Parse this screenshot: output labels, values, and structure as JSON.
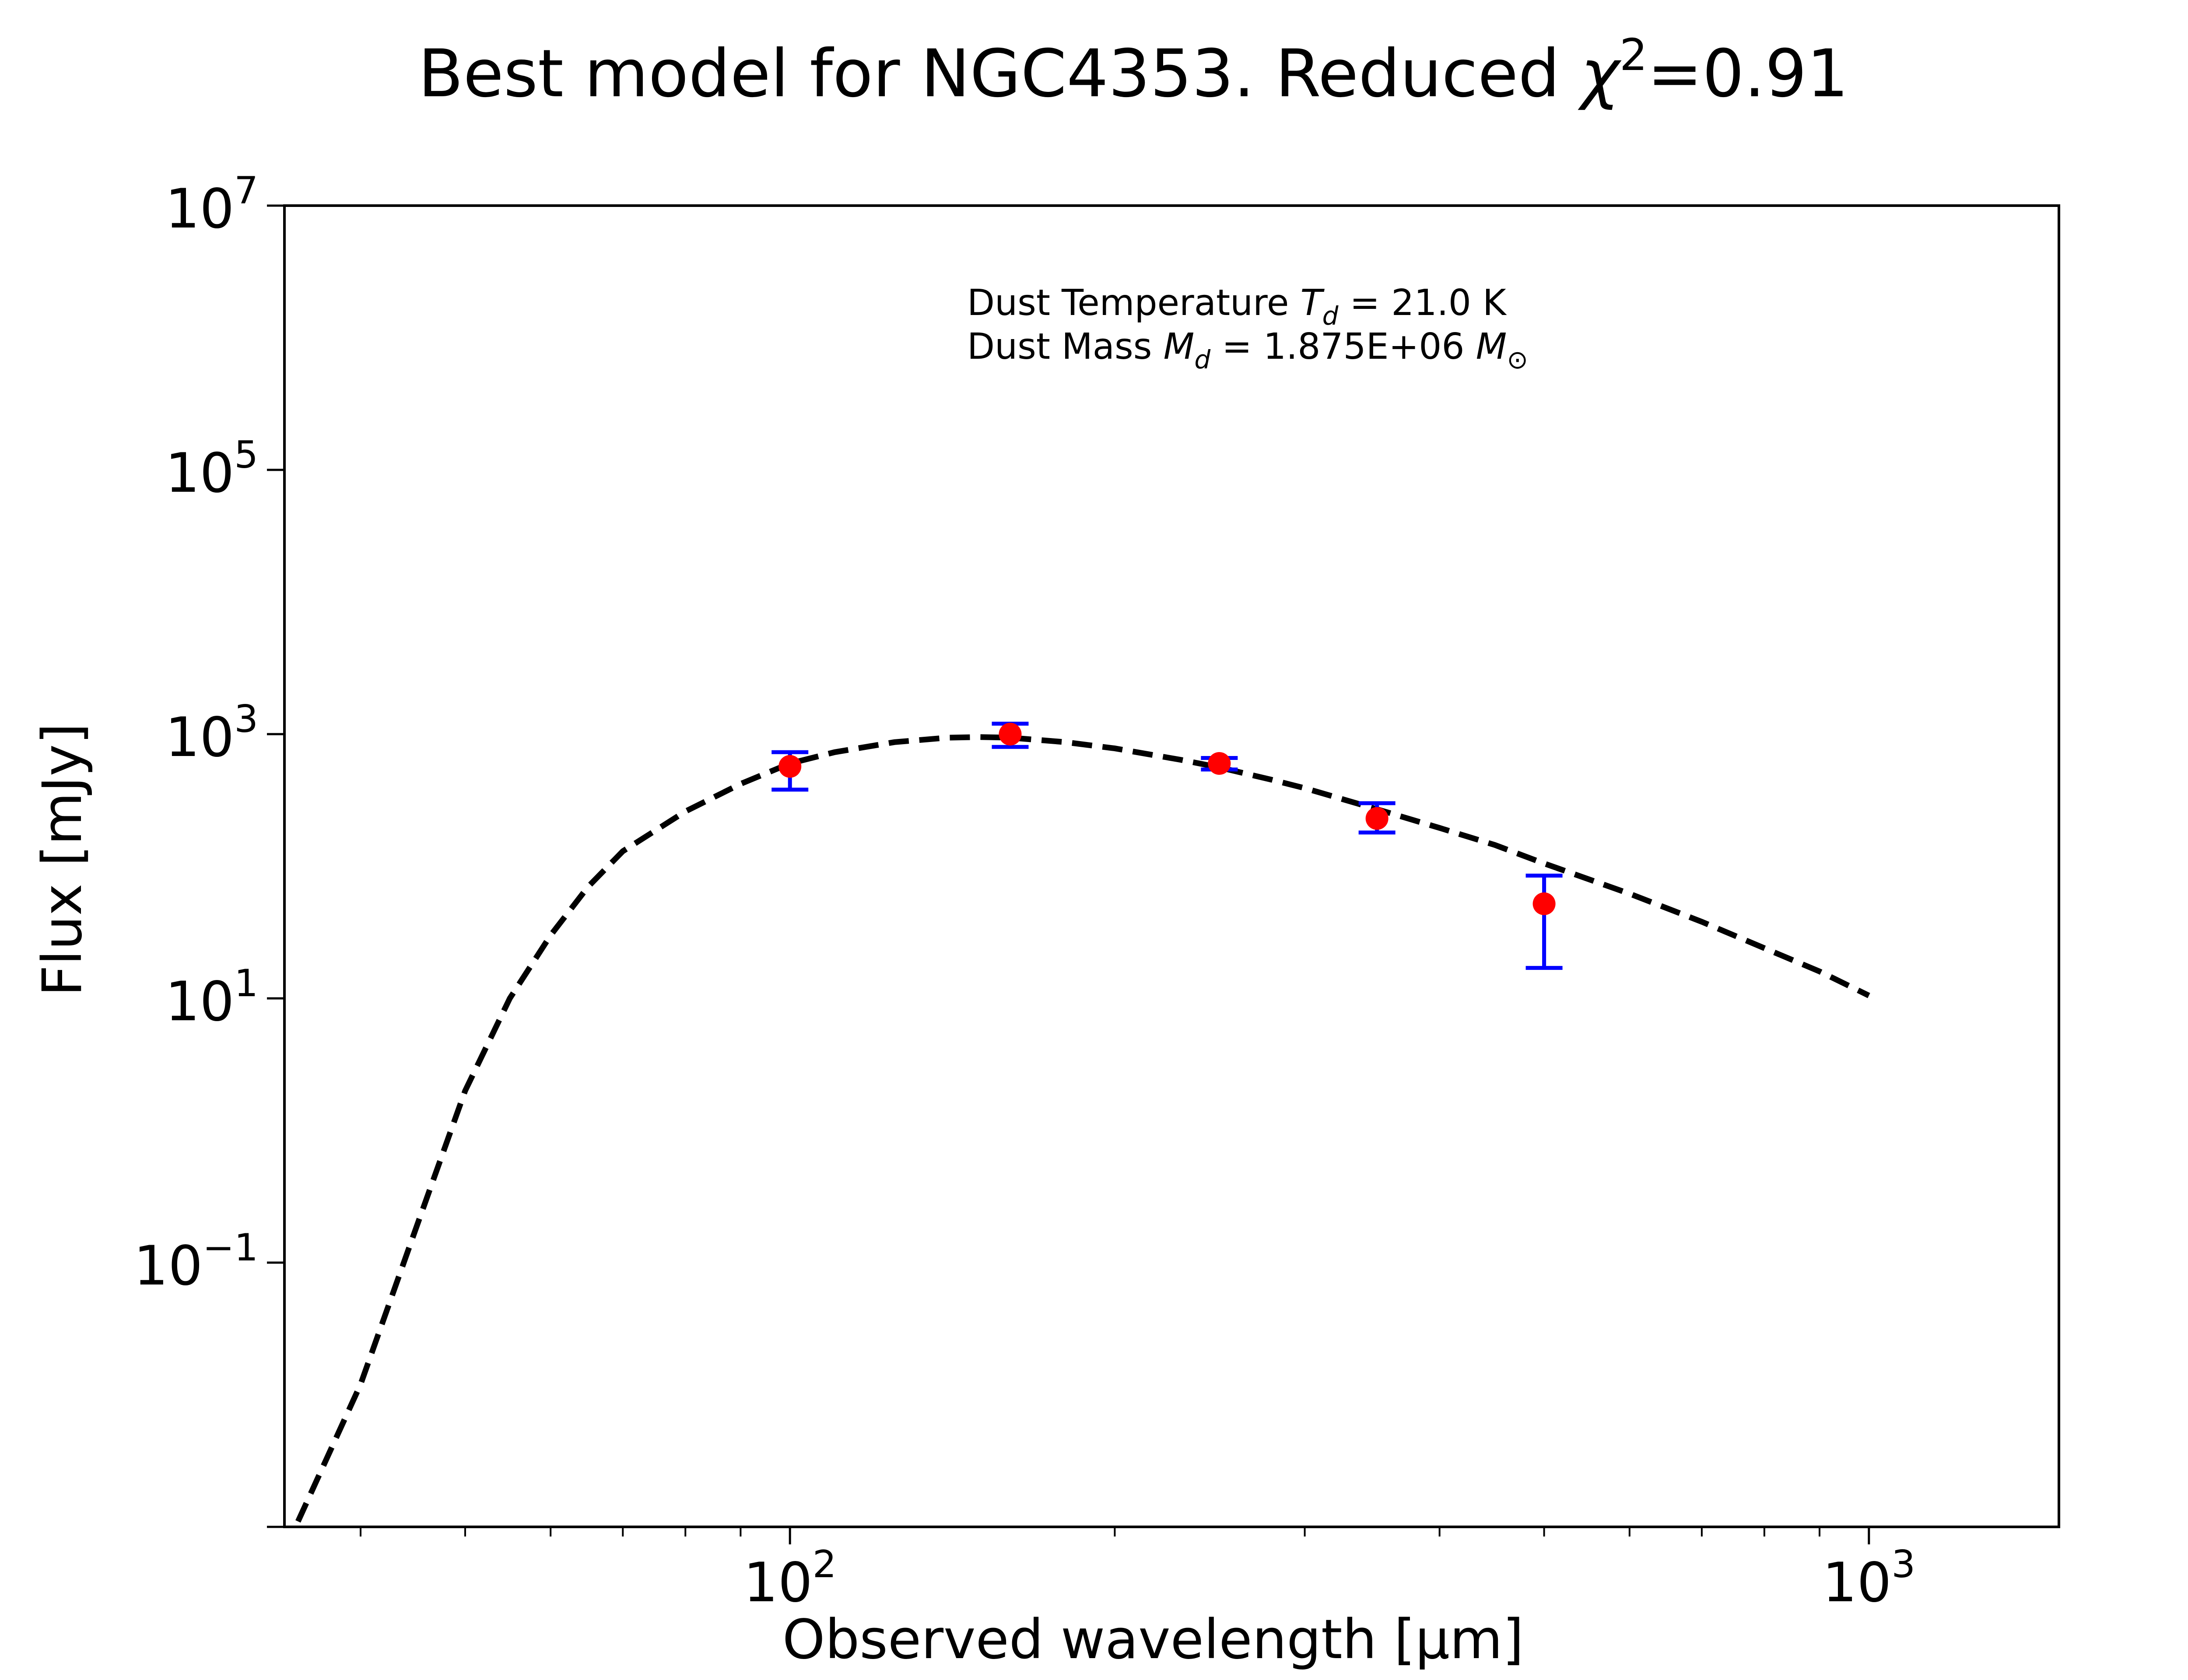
{
  "chart_data": {
    "type": "scatter",
    "title": "Best model for NGC4353. Reduced χ²=0.91",
    "title_main": "Best model for NGC4353. Reduced ",
    "title_chi": "χ",
    "title_sup": "2",
    "title_tail": "=0.91",
    "xlabel": "Observed wavelength [μm]",
    "ylabel": "Flux [mJy]",
    "xscale": "log",
    "yscale": "log",
    "xlim": [
      34,
      1500
    ],
    "ylim": [
      0.001,
      10000000
    ],
    "grid": false,
    "x_ticks": [
      {
        "value": 100,
        "base": "10",
        "exp": "2"
      },
      {
        "value": 1000,
        "base": "10",
        "exp": "3"
      }
    ],
    "y_ticks": [
      {
        "value": 0.1,
        "base": "10",
        "exp": "−1"
      },
      {
        "value": 10,
        "base": "10",
        "exp": "1"
      },
      {
        "value": 1000,
        "base": "10",
        "exp": "3"
      },
      {
        "value": 100000,
        "base": "10",
        "exp": "5"
      }
    ],
    "y_top_tick": {
      "value": 10000000,
      "base": "10",
      "exp": "7"
    },
    "annotation": {
      "line1": {
        "prefix": "Dust Temperature ",
        "sym": "T",
        "sub": "d",
        "suffix": " = 21.0 K"
      },
      "line2": {
        "prefix": "Dust Mass ",
        "sym": "M",
        "sub": "d",
        "middle": " = 1.875E+06 ",
        "sym2": "M",
        "sub2": "⊙"
      }
    },
    "series": [
      {
        "kind": "model",
        "style": "dashed",
        "color": "#000000",
        "x": [
          35,
          40,
          45,
          50,
          55,
          60,
          65,
          70,
          80,
          90,
          100,
          110,
          125,
          140,
          150,
          160,
          180,
          200,
          230,
          250,
          280,
          300,
          350,
          400,
          450,
          500,
          600,
          700,
          800,
          900,
          1000
        ],
        "y": [
          0.0011,
          0.012,
          0.18,
          2.0,
          10.0,
          30.0,
          70.0,
          130.0,
          260.0,
          420.0,
          600.0,
          730.0,
          870.0,
          940.0,
          950.0,
          940.0,
          870.0,
          780.0,
          640.0,
          560.0,
          450.0,
          390.0,
          270.0,
          195.0,
          145.0,
          105.0,
          62.0,
          38.0,
          24.0,
          16.0,
          10.5
        ]
      },
      {
        "kind": "observed",
        "color": "#ff0000",
        "errorbar_color": "#0000ff",
        "x": [
          100,
          160,
          250,
          350,
          500
        ],
        "y": [
          570,
          1000,
          600,
          230,
          52
        ],
        "yerr_low": [
          380,
          800,
          540,
          180,
          17
        ],
        "yerr_high": [
          730,
          1200,
          660,
          300,
          85
        ]
      }
    ]
  }
}
